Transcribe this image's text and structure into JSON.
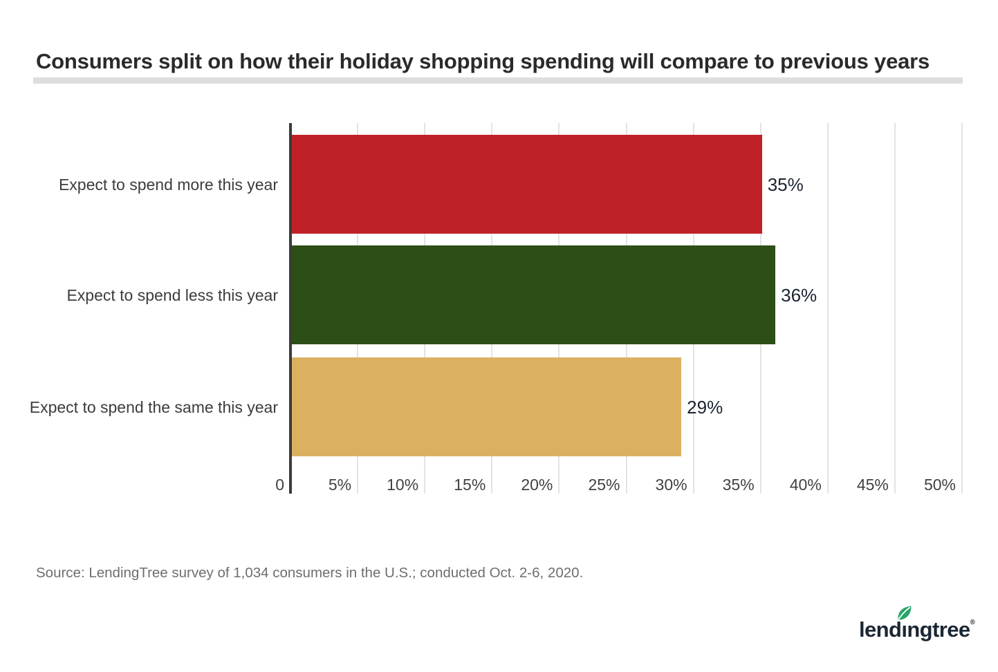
{
  "page": {
    "source": "Source: LendingTree survey of 1,034 consumers in the U.S.; conducted Oct. 2-6, 2020.",
    "logo": {
      "part_lend": "lend",
      "part_i": "ı",
      "part_ngtree": "ngtree",
      "registered": "®",
      "text_color": "#1b2733",
      "leaf_color": "#2aa56a"
    }
  },
  "chart_data": {
    "type": "bar",
    "orientation": "horizontal",
    "title": "Consumers split on how their holiday shopping spending will compare to previous years",
    "categories": [
      "Expect to spend more this year",
      "Expect to spend less this year",
      "Expect to spend the same this year"
    ],
    "values": [
      35,
      36,
      29
    ],
    "value_labels": [
      "35%",
      "36%",
      "29%"
    ],
    "bar_colors": [
      "#c02127",
      "#2d4f17",
      "#dbb161"
    ],
    "xlabel": "",
    "ylabel": "",
    "xlim": [
      0,
      50
    ],
    "xticks": [
      0,
      5,
      10,
      15,
      20,
      25,
      30,
      35,
      40,
      45,
      50
    ],
    "xtick_labels": [
      "0",
      "5%",
      "10%",
      "15%",
      "20%",
      "25%",
      "30%",
      "35%",
      "40%",
      "45%",
      "50%"
    ],
    "grid": "vertical",
    "gridline_color": "#e3e3e3",
    "axis_color": "#3b3b3b",
    "legend": "none"
  }
}
